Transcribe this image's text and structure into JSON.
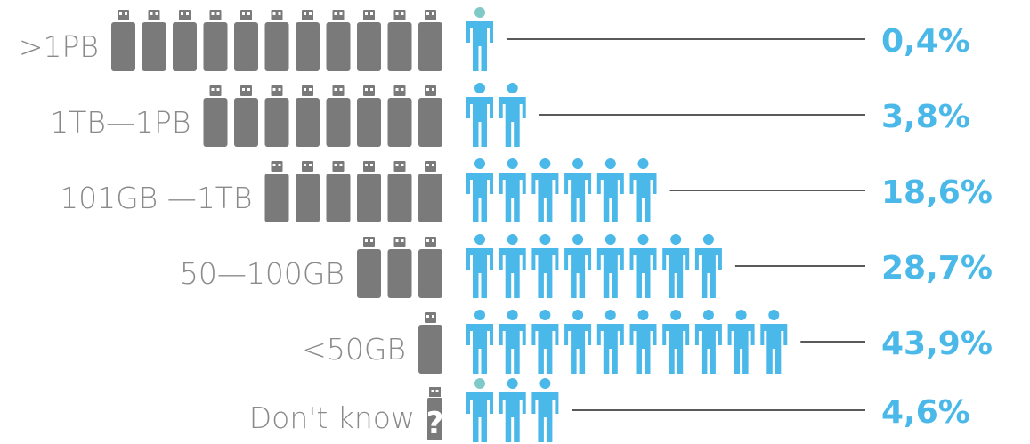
{
  "chart_data": {
    "type": "bar",
    "title": "",
    "xlabel": "",
    "ylabel": "",
    "categories": [
      ">1PB",
      "1TB—1PB",
      "101GB —1TB",
      "50—100GB",
      "<50GB",
      "Don't know"
    ],
    "values": [
      0.4,
      3.8,
      18.6,
      28.7,
      43.9,
      4.6
    ],
    "value_labels": [
      "0,4%",
      "3,8%",
      "18,6%",
      "28,7%",
      "43,9%",
      "4,6%"
    ],
    "usb_drive_icons": [
      11,
      8,
      6,
      3,
      1,
      1
    ],
    "person_icons": [
      1,
      2,
      6,
      8,
      10,
      3
    ],
    "unknown_marker": "?",
    "colors": {
      "person": "#4ab8e8",
      "person_head_partial": "#7fc9c9",
      "drive": "#7a7a7a",
      "drive_connector": "#7a7a7a",
      "drive_port": "#ffffff",
      "label": "#8a8a8a",
      "value": "#4ab8e8",
      "leader_line": "#222222"
    },
    "icons": {
      "drive": "usb-drive-icon",
      "person": "person-icon",
      "unknown": "question-usb-icon"
    }
  }
}
